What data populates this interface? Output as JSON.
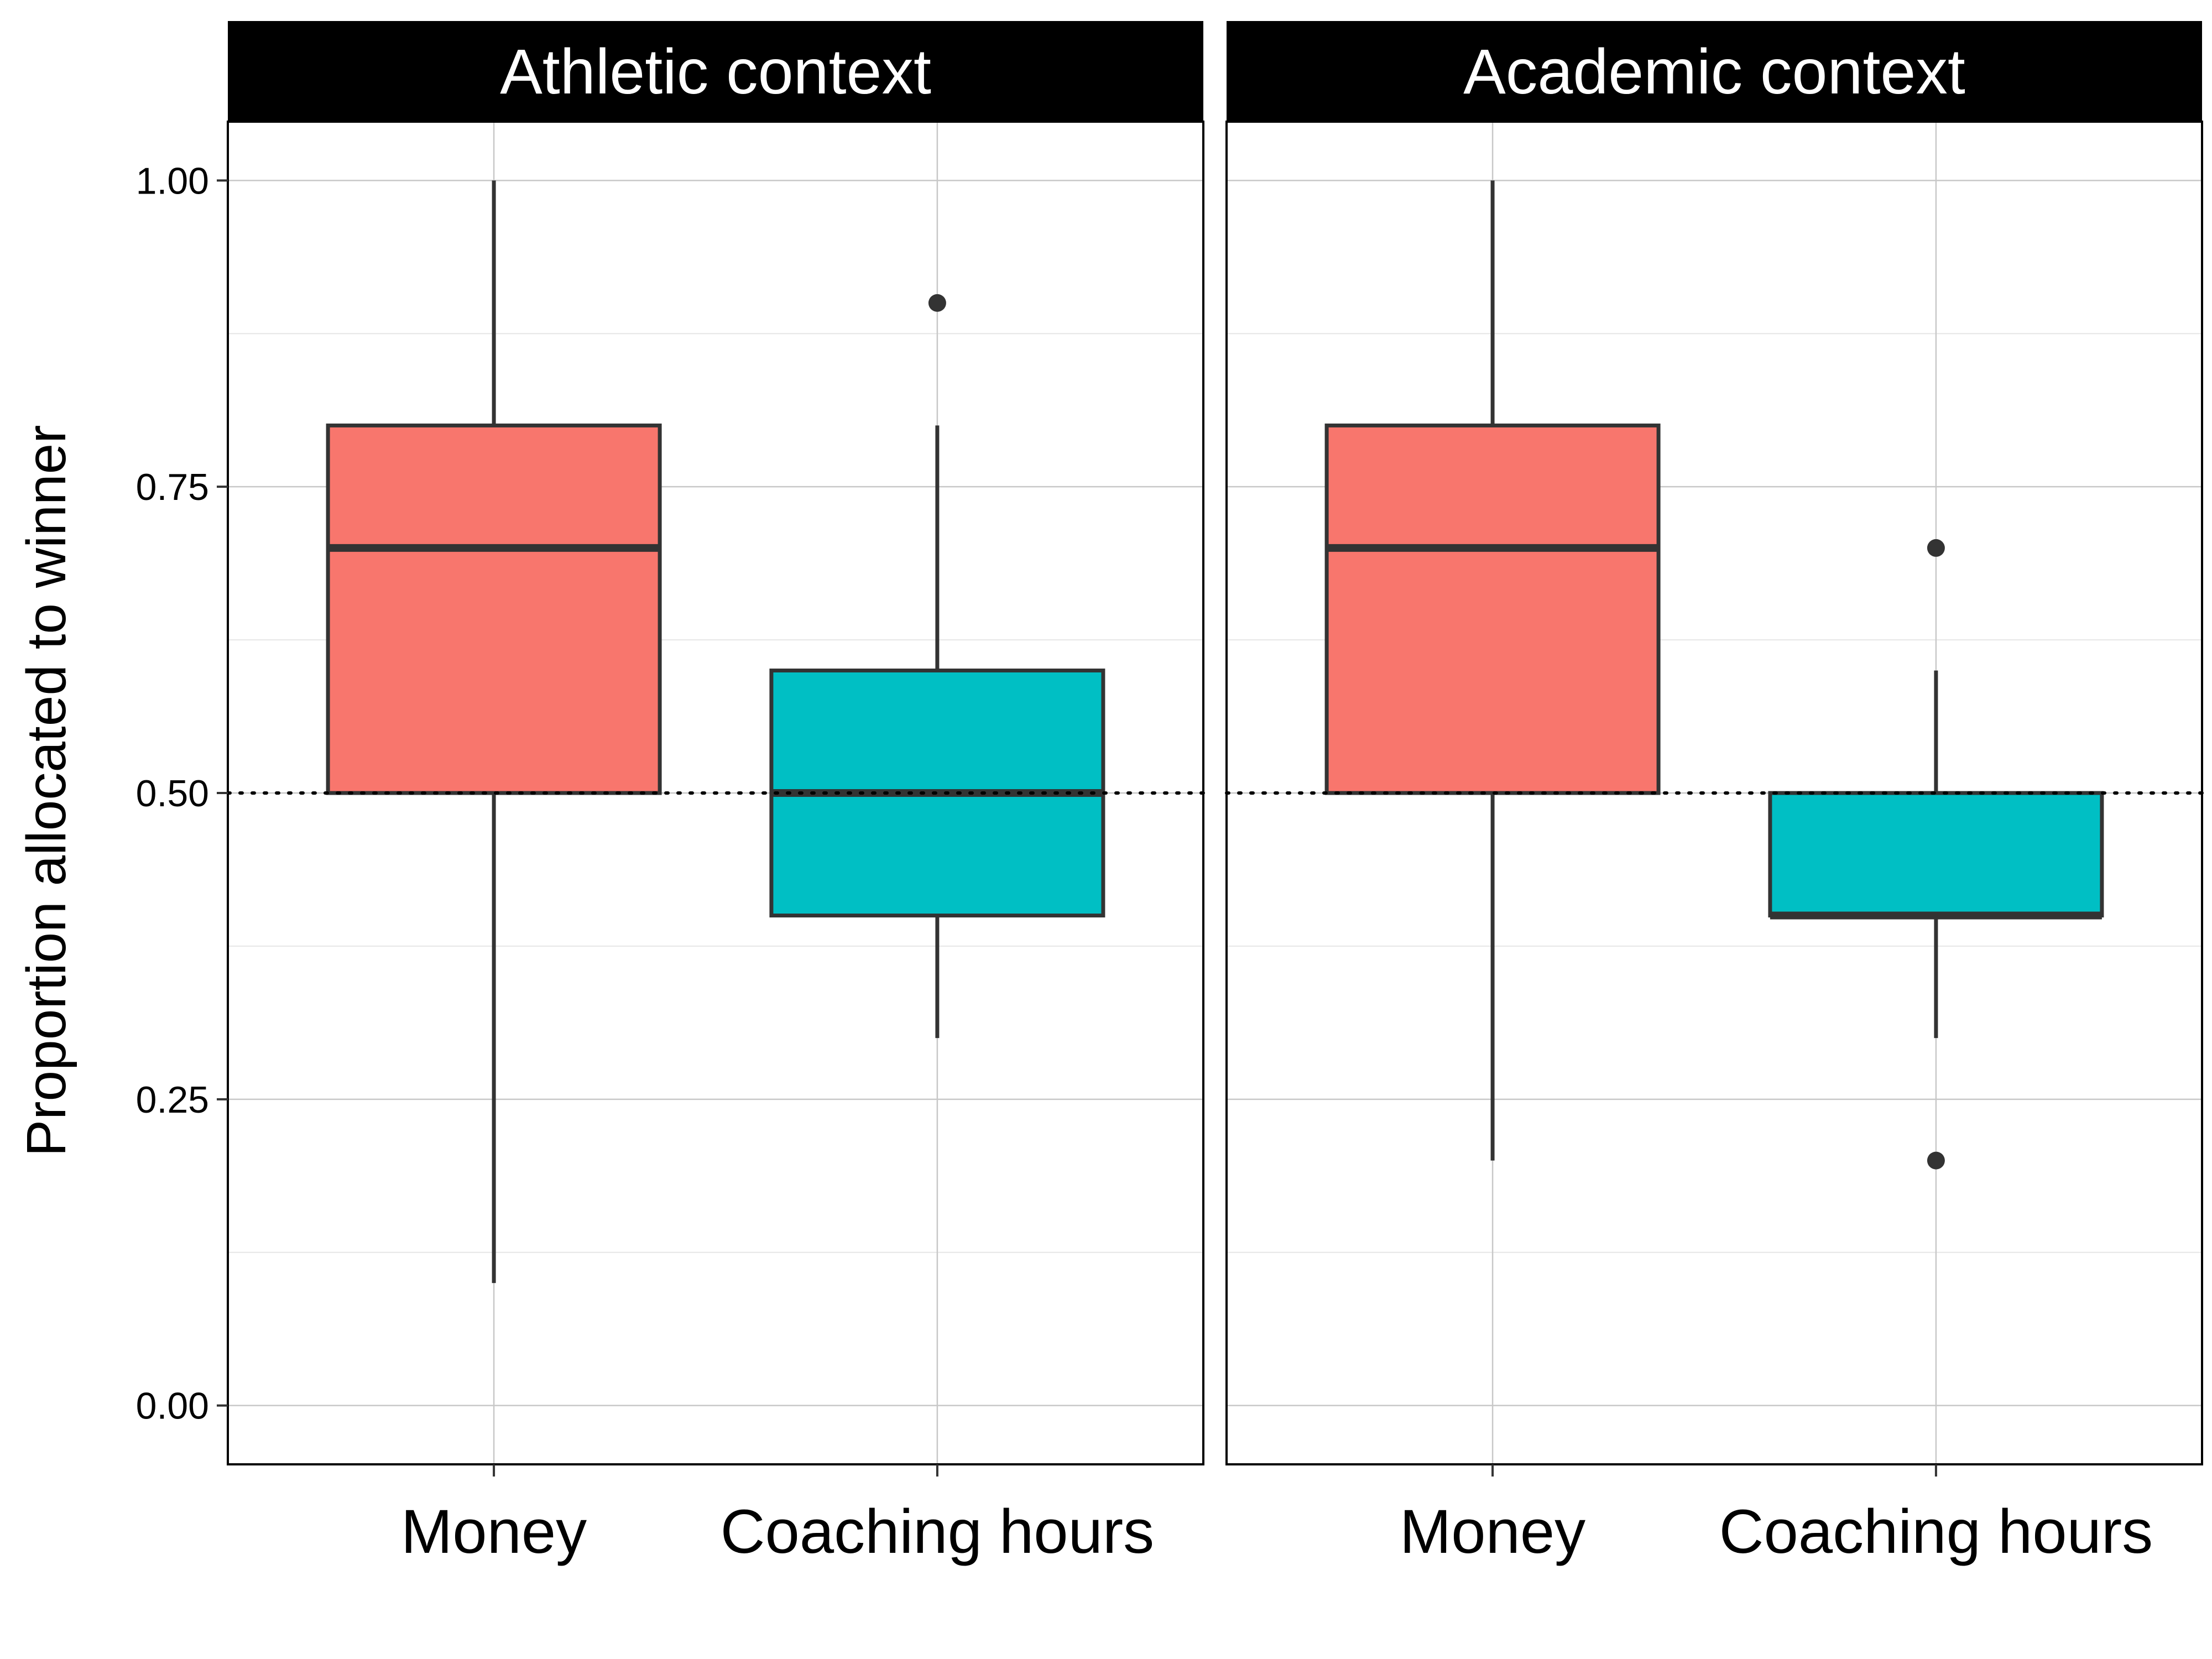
{
  "chart_data": {
    "type": "box",
    "ylabel": "Proportion allocated to winner",
    "ylim": [
      -0.048,
      1.048
    ],
    "yticks": [
      0.0,
      0.25,
      0.5,
      0.75,
      1.0
    ],
    "ytick_labels": [
      "0.00",
      "0.25",
      "0.50",
      "0.75",
      "1.00"
    ],
    "categories": [
      "Money",
      "Coaching hours"
    ],
    "colors": {
      "Money": "#F8766D",
      "Coaching hours": "#00BFC4"
    },
    "reference_line": 0.5,
    "grid": true,
    "legend": "none",
    "panels": [
      {
        "title": "Athletic context",
        "boxes": [
          {
            "category": "Money",
            "min": 0.1,
            "q1": 0.5,
            "median": 0.7,
            "q3": 0.8,
            "max": 1.0,
            "outliers": []
          },
          {
            "category": "Coaching hours",
            "min": 0.3,
            "q1": 0.4,
            "median": 0.5,
            "q3": 0.6,
            "max": 0.8,
            "outliers": [
              0.9
            ]
          }
        ]
      },
      {
        "title": "Academic context",
        "boxes": [
          {
            "category": "Money",
            "min": 0.2,
            "q1": 0.5,
            "median": 0.7,
            "q3": 0.8,
            "max": 1.0,
            "outliers": []
          },
          {
            "category": "Coaching hours",
            "min": 0.3,
            "q1": 0.4,
            "median": 0.4,
            "q3": 0.5,
            "max": 0.6,
            "outliers": [
              0.7,
              0.2
            ]
          }
        ]
      }
    ]
  }
}
